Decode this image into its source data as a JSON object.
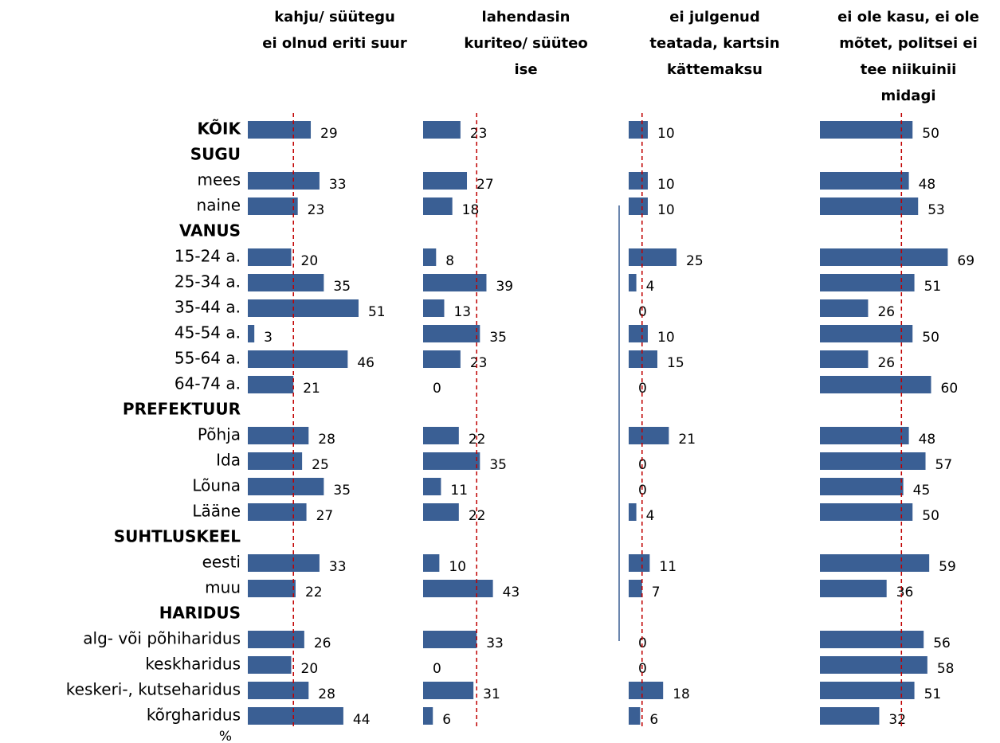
{
  "chart_data": {
    "type": "bar",
    "orientation": "horizontal",
    "color": "#3a5f94",
    "reference_color": "#c00000",
    "unit_label": "%",
    "xlim": [
      0,
      80
    ],
    "categories": [
      "KÕIK",
      "SUGU",
      "mees",
      "naine",
      "VANUS",
      "15-24 a.",
      "25-34 a.",
      "35-44 a.",
      "45-54 a.",
      "55-64 a.",
      "64-74 a.",
      "PREFEKTUUR",
      "Põhja",
      "Ida",
      "Lõuna",
      "Lääne",
      "SUHTLUSKEEL",
      "eesti",
      "muu",
      "HARIDUS",
      "alg- või põhiharidus",
      "keskharidus",
      "keskeri-, kutseharidus",
      "kõrgharidus"
    ],
    "headers": [
      "KÕIK",
      "SUGU",
      "VANUS",
      "PREFEKTUUR",
      "SUHTLUSKEEL",
      "HARIDUS"
    ],
    "series": [
      {
        "name": [
          "kahju/  süütegu",
          "ei olnud eriti suur"
        ],
        "reference": 21,
        "values": [
          29,
          null,
          33,
          23,
          null,
          20,
          35,
          51,
          3,
          46,
          21,
          null,
          28,
          25,
          35,
          27,
          null,
          33,
          22,
          null,
          26,
          20,
          28,
          44
        ]
      },
      {
        "name": [
          "lahendasin",
          "kuriteo/  süüteo",
          "ise"
        ],
        "reference": 33,
        "values": [
          23,
          null,
          27,
          18,
          null,
          8,
          39,
          13,
          35,
          23,
          0,
          null,
          22,
          35,
          11,
          22,
          null,
          10,
          43,
          null,
          33,
          0,
          31,
          6
        ]
      },
      {
        "name": [
          "ei julgenud",
          "teatada, kartsin",
          "kättemaksu"
        ],
        "reference": 7,
        "values": [
          10,
          null,
          10,
          10,
          null,
          25,
          4,
          0,
          10,
          15,
          0,
          null,
          21,
          0,
          0,
          4,
          null,
          11,
          7,
          null,
          0,
          0,
          18,
          6
        ]
      },
      {
        "name": [
          "ei ole kasu, ei ole",
          "mõtet, politsei ei",
          "tee niikuinii",
          "midagi"
        ],
        "reference": 44,
        "values": [
          50,
          null,
          48,
          53,
          null,
          69,
          51,
          26,
          50,
          26,
          60,
          null,
          48,
          57,
          45,
          50,
          null,
          59,
          36,
          null,
          56,
          58,
          51,
          32
        ]
      }
    ]
  }
}
